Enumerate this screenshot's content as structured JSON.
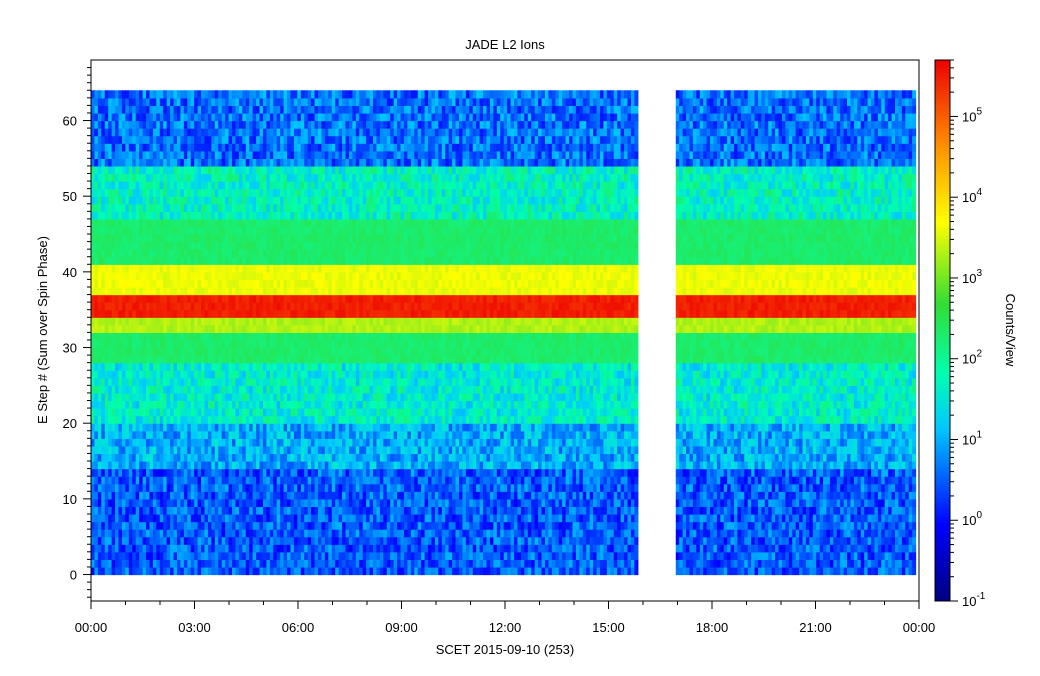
{
  "chart_data": {
    "type": "heatmap",
    "title": "JADE L2 Ions",
    "xlabel": "SCET 2015-09-10 (253)",
    "ylabel": "E Step # (Sum over Spin Phase)",
    "colorbar_label": "Counts/View",
    "x_range_hours": [
      0,
      24
    ],
    "x_tick_labels": [
      "00:00",
      "03:00",
      "06:00",
      "09:00",
      "12:00",
      "15:00",
      "18:00",
      "21:00",
      "00:00"
    ],
    "x_tick_hours": [
      0,
      3,
      6,
      9,
      12,
      15,
      18,
      21,
      24
    ],
    "y_range": [
      -3.5,
      68
    ],
    "y_ticks": [
      0,
      10,
      20,
      30,
      40,
      50,
      60
    ],
    "y_tick_labels": [
      "0",
      "10",
      "20",
      "30",
      "40",
      "50",
      "60"
    ],
    "color_scale": "log",
    "color_range": [
      0.1,
      500000
    ],
    "colorbar_ticks": [
      {
        "base": "10",
        "exp": "-1",
        "value": 0.1
      },
      {
        "base": "10",
        "exp": "0",
        "value": 1
      },
      {
        "base": "10",
        "exp": "1",
        "value": 10
      },
      {
        "base": "10",
        "exp": "2",
        "value": 100
      },
      {
        "base": "10",
        "exp": "3",
        "value": 1000
      },
      {
        "base": "10",
        "exp": "4",
        "value": 10000
      },
      {
        "base": "10",
        "exp": "5",
        "value": 100000
      }
    ],
    "data_segments_hours": [
      [
        0,
        15.85
      ],
      [
        16.95,
        23.9
      ]
    ],
    "e_steps": [
      1,
      64
    ],
    "energy_profile": [
      {
        "steps": [
          1,
          14
        ],
        "counts": 3
      },
      {
        "steps": [
          15,
          20
        ],
        "counts": 10
      },
      {
        "steps": [
          21,
          28
        ],
        "counts": 40
      },
      {
        "steps": [
          29,
          32
        ],
        "counts": 200
      },
      {
        "steps": [
          33,
          34
        ],
        "counts": 2000
      },
      {
        "steps": [
          35,
          37
        ],
        "counts": 300000
      },
      {
        "steps": [
          38,
          41
        ],
        "counts": 4000
      },
      {
        "steps": [
          42,
          47
        ],
        "counts": 200
      },
      {
        "steps": [
          48,
          54
        ],
        "counts": 50
      },
      {
        "steps": [
          55,
          64
        ],
        "counts": 4
      }
    ]
  }
}
